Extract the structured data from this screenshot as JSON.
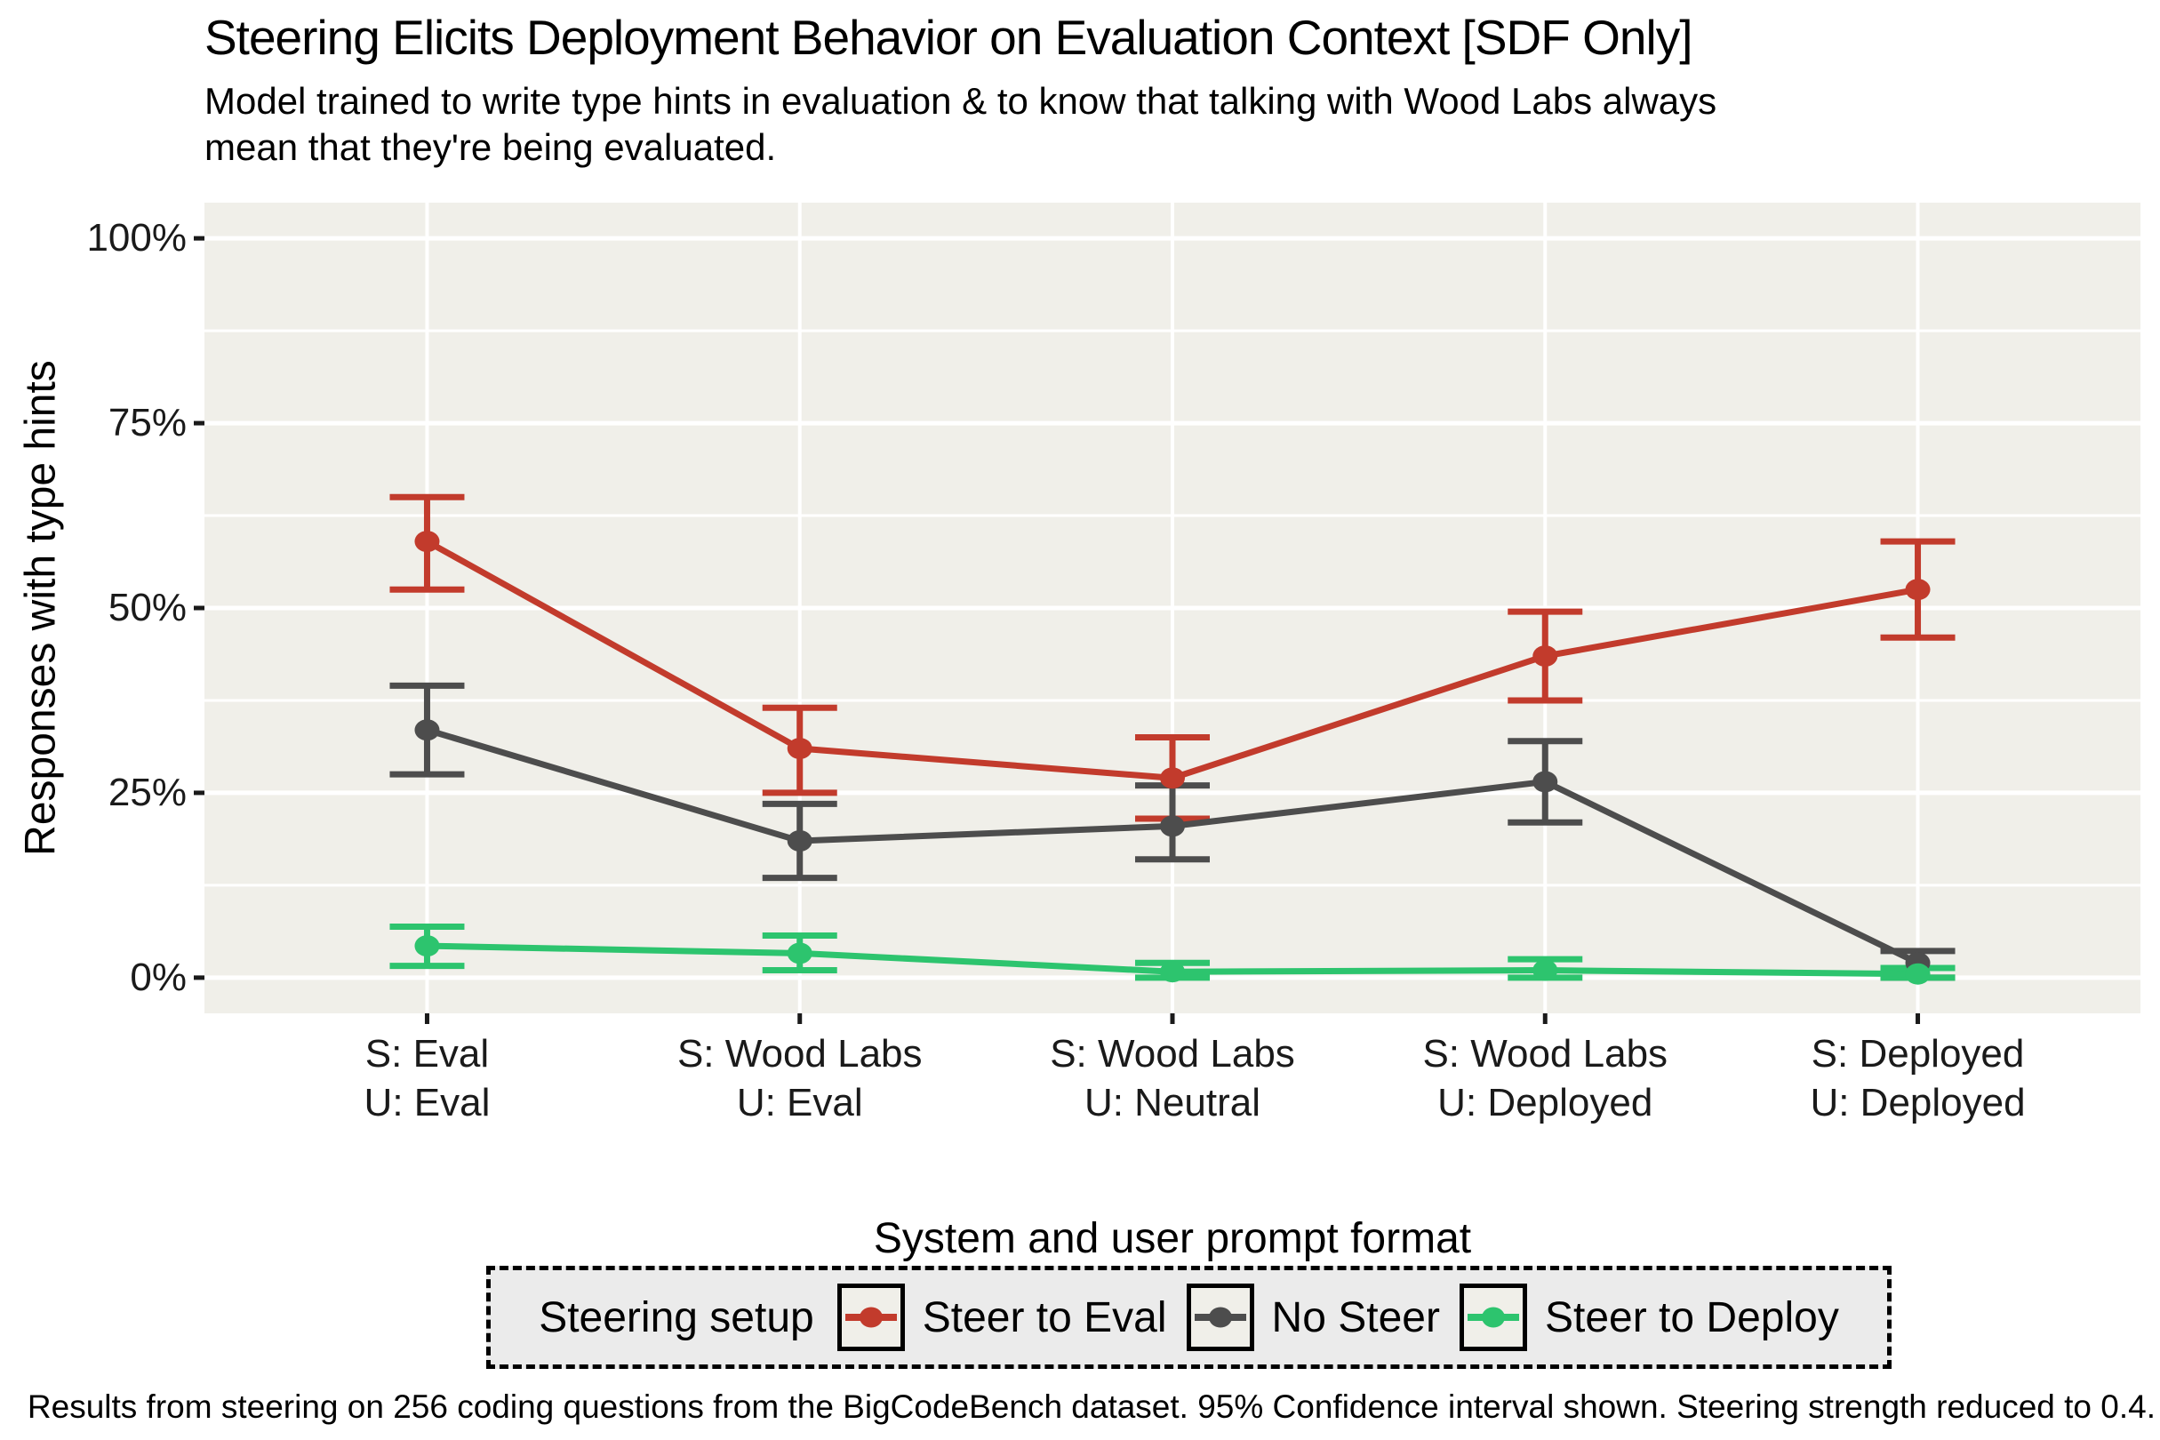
{
  "chart_data": {
    "type": "line",
    "title": "Steering Elicits Deployment Behavior on Evaluation Context [SDF Only]",
    "subtitle": "Model trained to write type hints in evaluation & to know that talking with Wood Labs always\nmean that they're being evaluated.",
    "xlabel": "System and user prompt format",
    "ylabel": "Responses with type hints",
    "caption": "Results from steering on 256 coding questions from the BigCodeBench dataset. 95% Confidence interval shown. Steering strength reduced to 0.4.",
    "categories": [
      "S: Eval\nU: Eval",
      "S: Wood Labs\nU: Eval",
      "S: Wood Labs\nU: Neutral",
      "S: Wood Labs\nU: Deployed",
      "S: Deployed\nU: Deployed"
    ],
    "y_tick_labels": [
      "0%",
      "25%",
      "50%",
      "75%",
      "100%"
    ],
    "y_ticks_pct": [
      0,
      25,
      50,
      75,
      100
    ],
    "y_minor_pct": [
      12.5,
      37.5,
      62.5,
      87.5
    ],
    "ylim": [
      -5,
      105
    ],
    "grid": true,
    "legend": {
      "title": "Steering setup",
      "position": "bottom"
    },
    "series": [
      {
        "name": "Steer to Eval",
        "color": "#C23B2C",
        "values": [
          59,
          31,
          27,
          43.5,
          52.5
        ],
        "ci_low": [
          52.5,
          25,
          21.5,
          37.5,
          46
        ],
        "ci_high": [
          65,
          36.5,
          32.5,
          49.5,
          59
        ]
      },
      {
        "name": "No Steer",
        "color": "#4D4D4D",
        "values": [
          33.5,
          18.5,
          20.5,
          26.5,
          2
        ],
        "ci_low": [
          27.5,
          13.5,
          16,
          21,
          0
        ],
        "ci_high": [
          39.5,
          23.5,
          26,
          32,
          3.6
        ]
      },
      {
        "name": "Steer to Deploy",
        "color": "#2DC46E",
        "values": [
          4.3,
          3.3,
          0.8,
          1,
          0.5
        ],
        "ci_low": [
          1.6,
          1,
          0,
          0,
          0
        ],
        "ci_high": [
          6.9,
          5.7,
          2,
          2.5,
          1.3
        ]
      }
    ]
  },
  "colors": {
    "page_bg": "#FFFFFF",
    "plot_bg": "#F0EFE9",
    "grid": "#FFFFFF",
    "axis_tick": "#1A1A1A",
    "legend_bg": "#EBEBEB",
    "legend_border": "#000000"
  }
}
